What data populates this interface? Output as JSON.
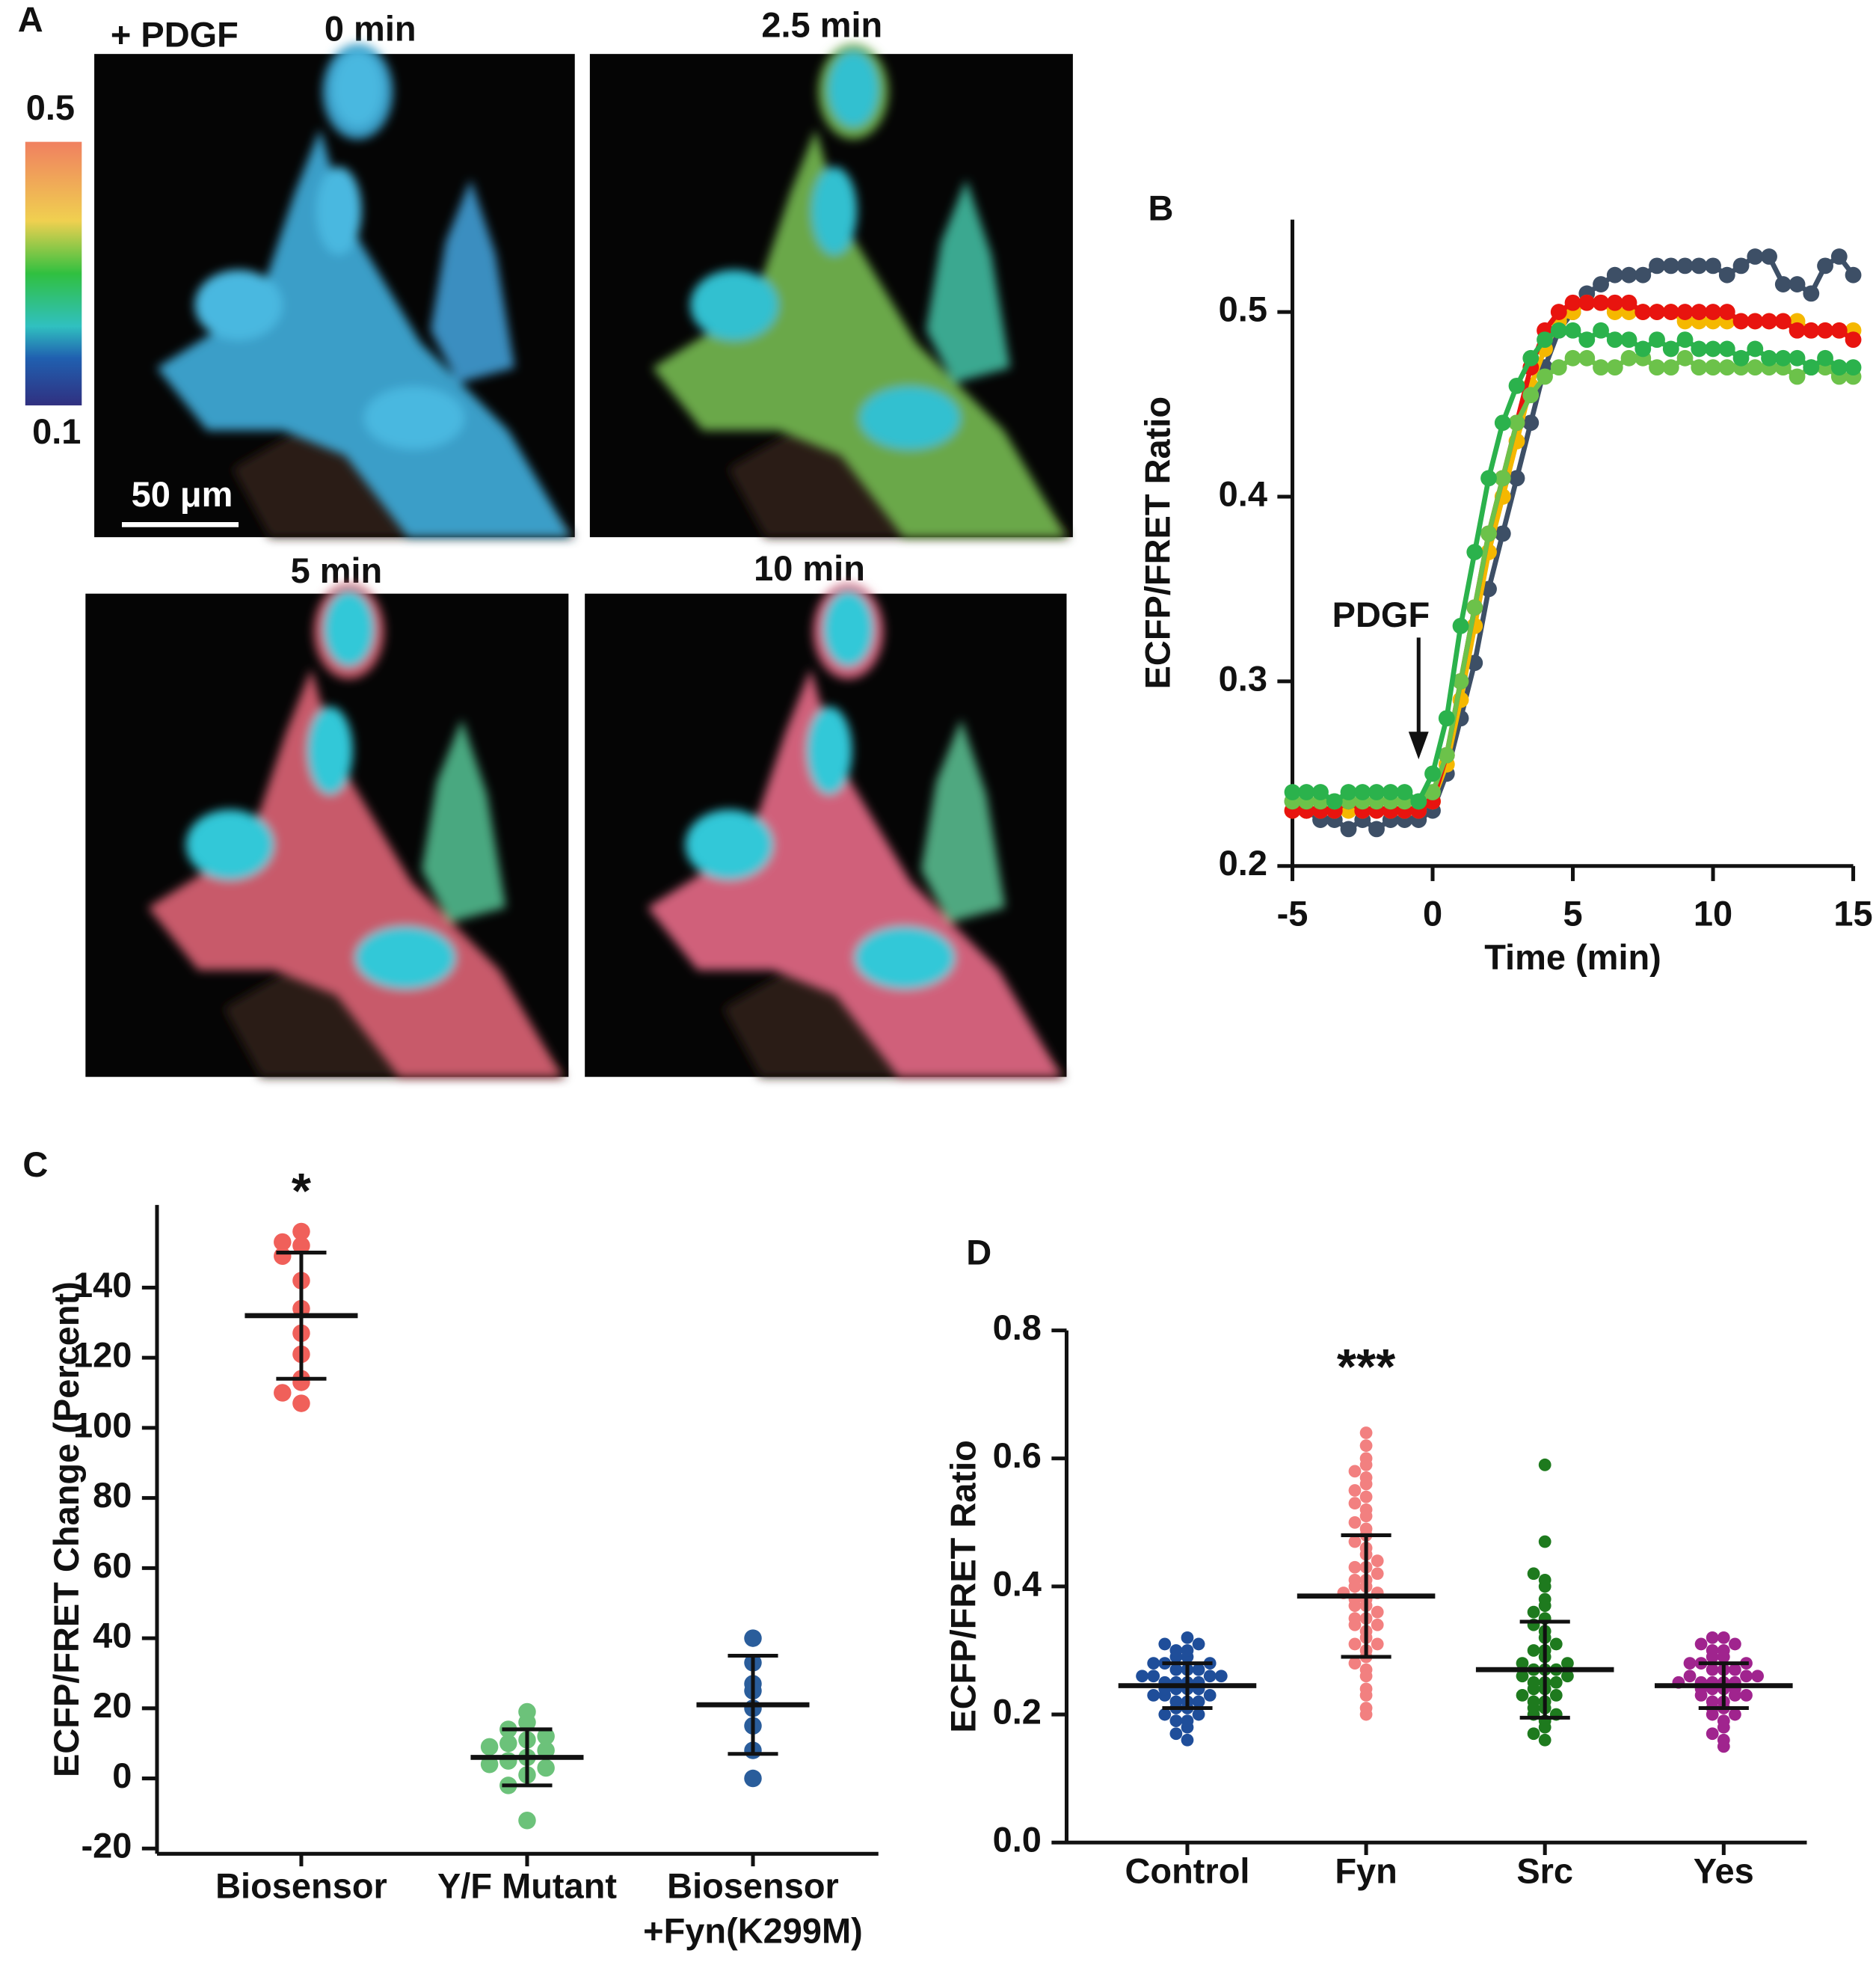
{
  "panel_a": {
    "label": "A",
    "treatment": "+ PDGF",
    "timepoints": [
      "0 min",
      "2.5 min",
      "5 min",
      "10 min"
    ],
    "colorbar": {
      "max": 0.5,
      "min": 0.1
    },
    "scale_bar": "50 μm"
  },
  "chart_data": [
    {
      "type": "line",
      "label": "B",
      "y_label": "ECFP/FRET Ratio",
      "x_label": "Time (min)",
      "annotation": {
        "text": "PDGF",
        "x": -0.5
      },
      "x": [
        -5,
        -4.5,
        -4,
        -3.5,
        -3,
        -2.5,
        -2,
        -1.5,
        -1,
        -0.5,
        0,
        0.5,
        1,
        1.5,
        2,
        2.5,
        3,
        3.5,
        4,
        4.5,
        5,
        5.5,
        6,
        6.5,
        7,
        7.5,
        8,
        8.5,
        9,
        9.5,
        10,
        10.5,
        11,
        11.5,
        12,
        12.5,
        13,
        13.5,
        14,
        14.5,
        15
      ],
      "xlim": [
        -5,
        15
      ],
      "xticks": [
        -5,
        0,
        5,
        10,
        15
      ],
      "ylim": [
        0.2,
        0.55
      ],
      "yticks": [
        0.2,
        0.3,
        0.4,
        0.5
      ],
      "series": [
        {
          "color": "#3d4f66",
          "values": [
            0.235,
            0.23,
            0.225,
            0.225,
            0.22,
            0.225,
            0.22,
            0.225,
            0.225,
            0.225,
            0.23,
            0.25,
            0.28,
            0.31,
            0.35,
            0.38,
            0.41,
            0.44,
            0.47,
            0.49,
            0.5,
            0.51,
            0.515,
            0.52,
            0.52,
            0.52,
            0.525,
            0.525,
            0.525,
            0.525,
            0.525,
            0.52,
            0.525,
            0.53,
            0.53,
            0.515,
            0.515,
            0.51,
            0.525,
            0.53,
            0.52
          ]
        },
        {
          "color": "#f5b800",
          "values": [
            0.23,
            0.23,
            0.23,
            0.23,
            0.23,
            0.23,
            0.23,
            0.23,
            0.23,
            0.23,
            0.235,
            0.255,
            0.29,
            0.33,
            0.37,
            0.4,
            0.43,
            0.46,
            0.48,
            0.495,
            0.5,
            0.505,
            0.505,
            0.5,
            0.5,
            0.5,
            0.5,
            0.5,
            0.495,
            0.495,
            0.495,
            0.495,
            0.495,
            0.495,
            0.495,
            0.495,
            0.495,
            0.49,
            0.49,
            0.49,
            0.49
          ]
        },
        {
          "color": "#e8140f",
          "values": [
            0.23,
            0.23,
            0.23,
            0.23,
            0.235,
            0.23,
            0.23,
            0.23,
            0.23,
            0.23,
            0.235,
            0.26,
            0.3,
            0.34,
            0.38,
            0.41,
            0.44,
            0.47,
            0.49,
            0.5,
            0.505,
            0.505,
            0.505,
            0.505,
            0.505,
            0.5,
            0.5,
            0.5,
            0.5,
            0.5,
            0.5,
            0.5,
            0.495,
            0.495,
            0.495,
            0.495,
            0.49,
            0.49,
            0.49,
            0.49,
            0.485
          ]
        },
        {
          "color": "#6cc24a",
          "values": [
            0.235,
            0.235,
            0.235,
            0.235,
            0.235,
            0.235,
            0.235,
            0.235,
            0.235,
            0.235,
            0.24,
            0.26,
            0.3,
            0.34,
            0.38,
            0.41,
            0.44,
            0.455,
            0.465,
            0.47,
            0.475,
            0.475,
            0.47,
            0.47,
            0.475,
            0.475,
            0.47,
            0.47,
            0.475,
            0.47,
            0.47,
            0.47,
            0.47,
            0.47,
            0.47,
            0.47,
            0.465,
            0.47,
            0.47,
            0.465,
            0.465
          ]
        },
        {
          "color": "#2bb24c",
          "values": [
            0.24,
            0.24,
            0.24,
            0.235,
            0.24,
            0.24,
            0.24,
            0.24,
            0.24,
            0.235,
            0.25,
            0.28,
            0.33,
            0.37,
            0.41,
            0.44,
            0.46,
            0.475,
            0.485,
            0.49,
            0.49,
            0.485,
            0.49,
            0.485,
            0.485,
            0.48,
            0.485,
            0.48,
            0.485,
            0.48,
            0.48,
            0.48,
            0.475,
            0.48,
            0.475,
            0.475,
            0.475,
            0.47,
            0.475,
            0.47,
            0.47
          ]
        }
      ]
    },
    {
      "type": "strip",
      "label": "C",
      "y_label": "ECFP/FRET Change (Percent)",
      "categories": [
        "Biosensor",
        "Y/F Mutant",
        "Biosensor +Fyn(K299M)"
      ],
      "significance": [
        "*",
        null,
        null
      ],
      "ylim": [
        -21.5,
        163.6
      ],
      "yticks": [
        -20,
        0,
        20,
        40,
        60,
        80,
        100,
        120,
        140
      ],
      "groups": [
        {
          "color": "#f0605a",
          "values": [
            156,
            153,
            152,
            149,
            142,
            134,
            127,
            121,
            113,
            110,
            107,
            114
          ],
          "mean": 132,
          "sd": 18
        },
        {
          "color": "#6cc27a",
          "values": [
            19,
            16,
            14,
            12,
            11,
            10,
            8,
            6,
            5,
            3,
            1,
            -2,
            -12,
            4,
            9
          ],
          "mean": 6,
          "sd": 8
        },
        {
          "color": "#2a5d9b",
          "values": [
            40,
            33,
            27,
            25,
            20,
            15,
            8,
            0
          ],
          "mean": 21,
          "sd": 14
        }
      ]
    },
    {
      "type": "strip",
      "label": "D",
      "y_label": "ECFP/FRET Ratio",
      "categories": [
        "Control",
        "Fyn",
        "Src",
        "Yes"
      ],
      "significance": [
        null,
        "***",
        null,
        null
      ],
      "ylim": [
        0,
        0.8
      ],
      "yticks": [
        {
          "value": 0,
          "label": "0.0"
        },
        0.2,
        0.4,
        0.6,
        0.8
      ],
      "groups": [
        {
          "color": "#1f4e9a",
          "values": [
            0.16,
            0.17,
            0.18,
            0.19,
            0.19,
            0.2,
            0.2,
            0.21,
            0.21,
            0.22,
            0.22,
            0.22,
            0.23,
            0.23,
            0.23,
            0.24,
            0.24,
            0.24,
            0.24,
            0.25,
            0.25,
            0.25,
            0.25,
            0.26,
            0.26,
            0.26,
            0.26,
            0.27,
            0.27,
            0.27,
            0.28,
            0.28,
            0.28,
            0.29,
            0.29,
            0.3,
            0.3,
            0.31,
            0.31,
            0.32
          ],
          "mean": 0.245,
          "sd": 0.035
        },
        {
          "color": "#f28080",
          "values": [
            0.2,
            0.21,
            0.23,
            0.24,
            0.26,
            0.27,
            0.28,
            0.29,
            0.3,
            0.31,
            0.31,
            0.32,
            0.33,
            0.34,
            0.34,
            0.35,
            0.35,
            0.36,
            0.37,
            0.37,
            0.38,
            0.38,
            0.39,
            0.39,
            0.4,
            0.4,
            0.41,
            0.41,
            0.42,
            0.43,
            0.43,
            0.44,
            0.45,
            0.46,
            0.47,
            0.48,
            0.49,
            0.5,
            0.51,
            0.52,
            0.53,
            0.54,
            0.55,
            0.56,
            0.57,
            0.58,
            0.59,
            0.6,
            0.62,
            0.64
          ],
          "mean": 0.385,
          "sd": 0.095
        },
        {
          "color": "#1e7a1e",
          "values": [
            0.16,
            0.17,
            0.18,
            0.19,
            0.2,
            0.2,
            0.21,
            0.21,
            0.22,
            0.22,
            0.23,
            0.23,
            0.24,
            0.24,
            0.25,
            0.25,
            0.25,
            0.26,
            0.26,
            0.27,
            0.27,
            0.27,
            0.28,
            0.28,
            0.29,
            0.3,
            0.3,
            0.31,
            0.32,
            0.33,
            0.34,
            0.35,
            0.36,
            0.37,
            0.38,
            0.4,
            0.41,
            0.42,
            0.47,
            0.59
          ],
          "mean": 0.27,
          "sd": 0.075
        },
        {
          "color": "#a0248e",
          "values": [
            0.15,
            0.16,
            0.17,
            0.18,
            0.19,
            0.2,
            0.2,
            0.21,
            0.21,
            0.22,
            0.22,
            0.23,
            0.23,
            0.23,
            0.24,
            0.24,
            0.24,
            0.25,
            0.25,
            0.25,
            0.25,
            0.26,
            0.26,
            0.26,
            0.27,
            0.27,
            0.27,
            0.28,
            0.28,
            0.28,
            0.29,
            0.29,
            0.3,
            0.3,
            0.31,
            0.31,
            0.32,
            0.32,
            0.24,
            0.25
          ],
          "mean": 0.245,
          "sd": 0.035
        }
      ]
    }
  ]
}
